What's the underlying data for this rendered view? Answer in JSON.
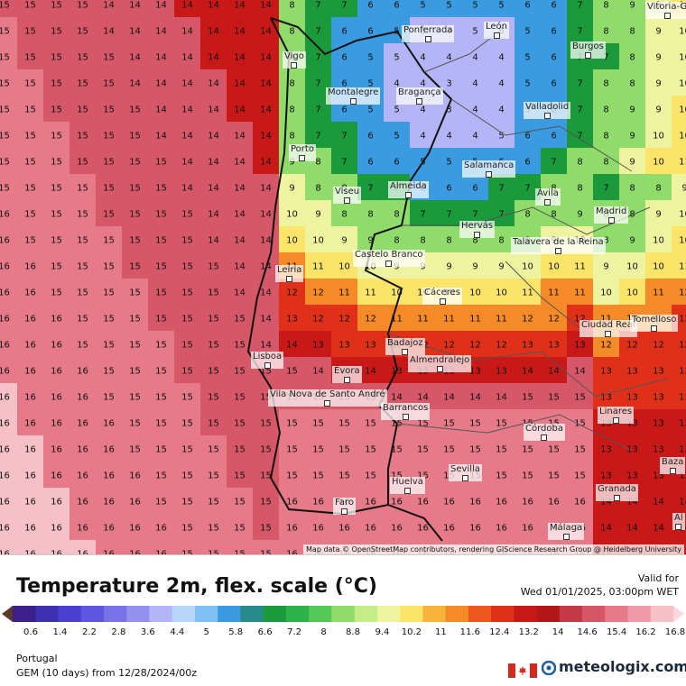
{
  "map": {
    "attribution": "Map data © OpenStreetMap contributors, rendering GIScience Research Group @ Heidelberg University",
    "cities": [
      {
        "name": "Vitoria-G",
        "key": "vitoria"
      },
      {
        "name": "Ponferrada",
        "key": "ponferrada"
      },
      {
        "name": "León",
        "key": "leon"
      },
      {
        "name": "Vigo",
        "key": "vigo"
      },
      {
        "name": "Burgos",
        "key": "burgos"
      },
      {
        "name": "Montalegre",
        "key": "montalegre"
      },
      {
        "name": "Bragança",
        "key": "braganca"
      },
      {
        "name": "Valladolid",
        "key": "valladolid"
      },
      {
        "name": "Porto",
        "key": "porto"
      },
      {
        "name": "Salamanca",
        "key": "salamanca"
      },
      {
        "name": "Almeida",
        "key": "almeida"
      },
      {
        "name": "Viseu",
        "key": "viseu"
      },
      {
        "name": "Ávila",
        "key": "avila"
      },
      {
        "name": "Madrid",
        "key": "madrid"
      },
      {
        "name": "Hervás",
        "key": "hervas"
      },
      {
        "name": "Castelo Branco",
        "key": "castelo"
      },
      {
        "name": "Talavera de la Reina",
        "key": "talavera"
      },
      {
        "name": "Leiria",
        "key": "leiria"
      },
      {
        "name": "Cáceres",
        "key": "caceres"
      },
      {
        "name": "Ciudad Real",
        "key": "ciudadreal"
      },
      {
        "name": "Tomelloso",
        "key": "tomelloso"
      },
      {
        "name": "Badajoz",
        "key": "badajoz"
      },
      {
        "name": "Lisboa",
        "key": "lisboa"
      },
      {
        "name": "Almendralejo",
        "key": "almendralejo"
      },
      {
        "name": "Évora",
        "key": "evora"
      },
      {
        "name": "Vila Nova de Santo André",
        "key": "vilanova"
      },
      {
        "name": "Barrancos",
        "key": "barrancos"
      },
      {
        "name": "Linares",
        "key": "linares"
      },
      {
        "name": "Córdoba",
        "key": "cordoba"
      },
      {
        "name": "Sevilla",
        "key": "sevilla"
      },
      {
        "name": "Baza",
        "key": "baza"
      },
      {
        "name": "Huelva",
        "key": "huelva"
      },
      {
        "name": "Granada",
        "key": "granada"
      },
      {
        "name": "Faro",
        "key": "faro"
      },
      {
        "name": "Málaga",
        "key": "malaga"
      },
      {
        "name": "Al",
        "key": "al"
      }
    ]
  },
  "legend": {
    "title": "Temperature 2m, flex. scale (°C)",
    "valid_label": "Valid for",
    "valid_date": "Wed 01/01/2025, 03:00pm WET",
    "ticks": [
      "0.6",
      "1.4",
      "2.2",
      "2.8",
      "3.6",
      "4.4",
      "5",
      "5.8",
      "6.6",
      "7.2",
      "8",
      "8.8",
      "9.4",
      "10.2",
      "11",
      "11.6",
      "12.4",
      "13.2",
      "14",
      "14.6",
      "15.4",
      "16.2",
      "16.8"
    ],
    "colors": [
      "#5a3a2a",
      "#3b1f8a",
      "#3c2fb0",
      "#4a3fd0",
      "#5e55e0",
      "#7a70ea",
      "#9590f0",
      "#b4b4f6",
      "#b8d6f8",
      "#7fc0f0",
      "#3a9be0",
      "#2a8a8a",
      "#1a9a3a",
      "#2db34a",
      "#55c855",
      "#8fdc6a",
      "#c6ec8a",
      "#eef3a0",
      "#fbe46a",
      "#f8b43a",
      "#f58a28",
      "#ee5a1e",
      "#e0301a",
      "#c81818",
      "#b01818",
      "#c43848",
      "#d65868",
      "#e67a88",
      "#f09aa8",
      "#f6c0c8",
      "#fad8dc"
    ]
  },
  "footer": {
    "region": "Portugal",
    "model": "GEM (10 days) from 12/28/2024/00z",
    "brand": "meteologix.com"
  }
}
